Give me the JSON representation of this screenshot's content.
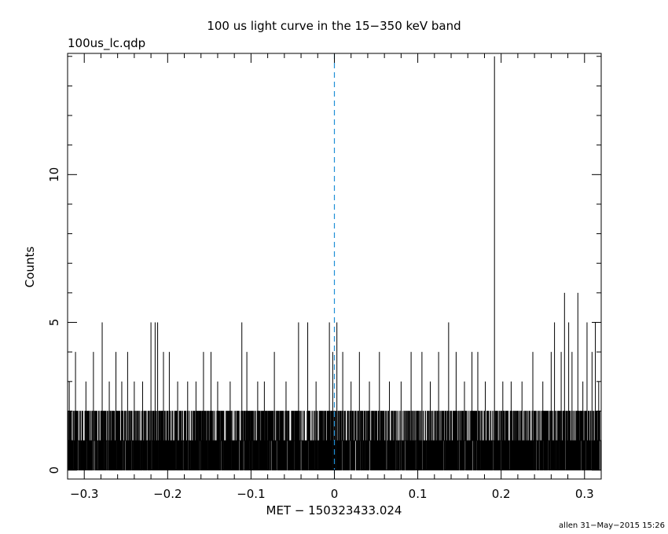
{
  "chart_data": {
    "type": "line",
    "title": "100 us light curve in the 15−350 keV band",
    "subtitle": "100us_lc.qdp",
    "xlabel": "MET − 150323433.024",
    "ylabel": "Counts",
    "footer": "allen 31−May−2015 15:26",
    "xlim": [
      -0.32,
      0.32
    ],
    "ylim": [
      -0.3,
      14.1
    ],
    "x_ticks": [
      -0.3,
      -0.2,
      -0.1,
      0,
      0.1,
      0.2,
      0.3
    ],
    "x_tick_labels": [
      "−0.3",
      "−0.2",
      "−0.1",
      "0",
      "0.1",
      "0.2",
      "0.3"
    ],
    "y_ticks": [
      0,
      5,
      10
    ],
    "y_tick_labels": [
      "0",
      "5",
      "10"
    ],
    "trigger_line": {
      "x": 0,
      "color": "#1f8fd6"
    },
    "series": [
      {
        "color": "#000000",
        "bin_width": 0.0001,
        "x_start": -0.32,
        "baseline_max": 2,
        "spikes": [
          {
            "x": -0.318,
            "y": 3
          },
          {
            "x": -0.3105,
            "y": 4
          },
          {
            "x": -0.298,
            "y": 3
          },
          {
            "x": -0.289,
            "y": 4
          },
          {
            "x": -0.2785,
            "y": 5
          },
          {
            "x": -0.27,
            "y": 3
          },
          {
            "x": -0.262,
            "y": 4
          },
          {
            "x": -0.255,
            "y": 3
          },
          {
            "x": -0.248,
            "y": 4
          },
          {
            "x": -0.24,
            "y": 3
          },
          {
            "x": -0.23,
            "y": 3
          },
          {
            "x": -0.22,
            "y": 5
          },
          {
            "x": -0.215,
            "y": 5
          },
          {
            "x": -0.212,
            "y": 5
          },
          {
            "x": -0.205,
            "y": 4
          },
          {
            "x": -0.198,
            "y": 4
          },
          {
            "x": -0.188,
            "y": 3
          },
          {
            "x": -0.176,
            "y": 3
          },
          {
            "x": -0.166,
            "y": 3
          },
          {
            "x": -0.157,
            "y": 4
          },
          {
            "x": -0.148,
            "y": 4
          },
          {
            "x": -0.14,
            "y": 3
          },
          {
            "x": -0.125,
            "y": 3
          },
          {
            "x": -0.111,
            "y": 5
          },
          {
            "x": -0.105,
            "y": 4
          },
          {
            "x": -0.092,
            "y": 3
          },
          {
            "x": -0.084,
            "y": 3
          },
          {
            "x": -0.072,
            "y": 4
          },
          {
            "x": -0.058,
            "y": 3
          },
          {
            "x": -0.043,
            "y": 5
          },
          {
            "x": -0.032,
            "y": 5
          },
          {
            "x": -0.022,
            "y": 3
          },
          {
            "x": -0.006,
            "y": 5
          },
          {
            "x": -0.002,
            "y": 4
          },
          {
            "x": 0.003,
            "y": 5
          },
          {
            "x": 0.01,
            "y": 4
          },
          {
            "x": 0.02,
            "y": 3
          },
          {
            "x": 0.03,
            "y": 4
          },
          {
            "x": 0.042,
            "y": 3
          },
          {
            "x": 0.054,
            "y": 4
          },
          {
            "x": 0.066,
            "y": 3
          },
          {
            "x": 0.08,
            "y": 3
          },
          {
            "x": 0.092,
            "y": 4
          },
          {
            "x": 0.105,
            "y": 4
          },
          {
            "x": 0.115,
            "y": 3
          },
          {
            "x": 0.125,
            "y": 4
          },
          {
            "x": 0.137,
            "y": 5
          },
          {
            "x": 0.146,
            "y": 4
          },
          {
            "x": 0.156,
            "y": 3
          },
          {
            "x": 0.165,
            "y": 4
          },
          {
            "x": 0.172,
            "y": 4
          },
          {
            "x": 0.181,
            "y": 3
          },
          {
            "x": 0.192,
            "y": 14
          },
          {
            "x": 0.202,
            "y": 3
          },
          {
            "x": 0.212,
            "y": 3
          },
          {
            "x": 0.225,
            "y": 3
          },
          {
            "x": 0.238,
            "y": 4
          },
          {
            "x": 0.25,
            "y": 3
          },
          {
            "x": 0.26,
            "y": 4
          },
          {
            "x": 0.264,
            "y": 5
          },
          {
            "x": 0.272,
            "y": 4
          },
          {
            "x": 0.276,
            "y": 6
          },
          {
            "x": 0.281,
            "y": 5
          },
          {
            "x": 0.285,
            "y": 4
          },
          {
            "x": 0.292,
            "y": 6
          },
          {
            "x": 0.298,
            "y": 3
          },
          {
            "x": 0.303,
            "y": 5
          },
          {
            "x": 0.309,
            "y": 4
          },
          {
            "x": 0.313,
            "y": 5
          },
          {
            "x": 0.317,
            "y": 3
          }
        ]
      }
    ]
  }
}
